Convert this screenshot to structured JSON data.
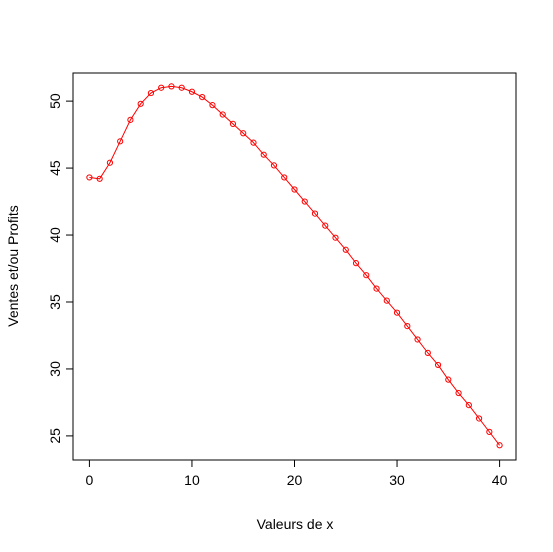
{
  "chart_data": {
    "type": "line",
    "title": "",
    "xlabel": "Valeurs de x",
    "ylabel": "Ventes et/ou Profits",
    "xlim": [
      -1.6,
      41.6
    ],
    "ylim": [
      23.2,
      52.1
    ],
    "x_ticks": [
      0,
      10,
      20,
      30,
      40
    ],
    "y_ticks": [
      25,
      30,
      35,
      40,
      45,
      50
    ],
    "x_tick_labels": [
      "0",
      "10",
      "20",
      "30",
      "40"
    ],
    "y_tick_labels": [
      "25",
      "30",
      "35",
      "40",
      "45",
      "50"
    ],
    "grid": false,
    "legend": "none",
    "series": [
      {
        "color": "#ff0000",
        "marker": "circle-open",
        "x": [
          0,
          1,
          2,
          3,
          4,
          5,
          6,
          7,
          8,
          9,
          10,
          11,
          12,
          13,
          14,
          15,
          16,
          17,
          18,
          19,
          20,
          21,
          22,
          23,
          24,
          25,
          26,
          27,
          28,
          29,
          30,
          31,
          32,
          33,
          34,
          35,
          36,
          37,
          38,
          39,
          40
        ],
        "values": [
          44.3,
          44.2,
          45.4,
          47.0,
          48.6,
          49.8,
          50.6,
          51.0,
          51.1,
          51.0,
          50.7,
          50.3,
          49.7,
          49.0,
          48.3,
          47.6,
          46.9,
          46.0,
          45.2,
          44.3,
          43.4,
          42.5,
          41.6,
          40.7,
          39.8,
          38.9,
          37.9,
          37.0,
          36.0,
          35.1,
          34.2,
          33.2,
          32.2,
          31.2,
          30.3,
          29.2,
          28.2,
          27.3,
          26.3,
          25.3,
          24.3
        ]
      }
    ]
  }
}
